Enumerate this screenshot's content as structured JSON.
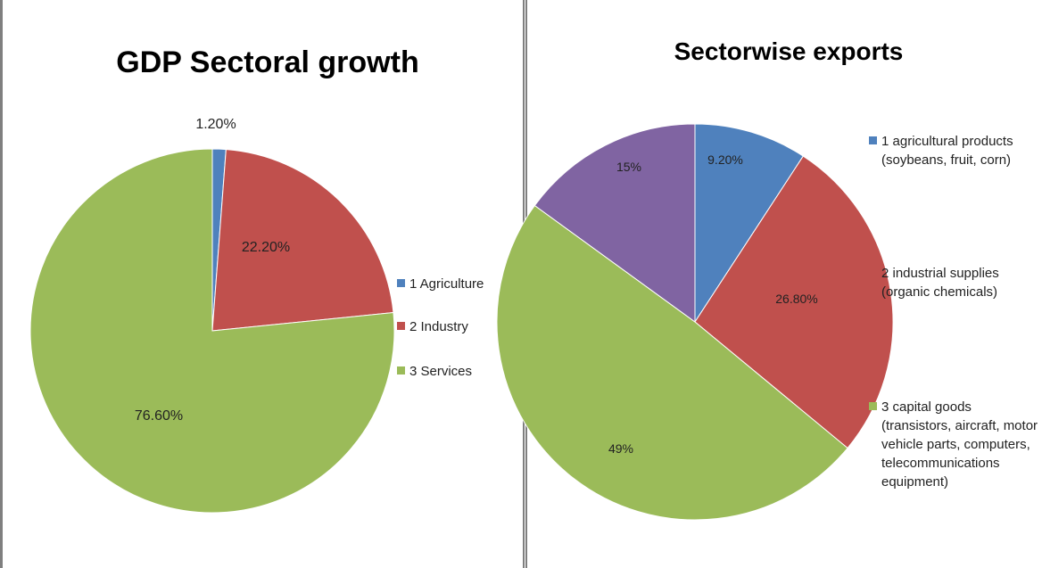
{
  "chart_data": [
    {
      "type": "pie",
      "title": "GDP Sectoral growth",
      "legend_position": "right",
      "slices": [
        {
          "label": "1 Agriculture",
          "value": 1.2,
          "data_label": "1.20%",
          "color": "#4f81bd"
        },
        {
          "label": "2  Industry",
          "value": 22.2,
          "data_label": "22.20%",
          "color": "#c0504d"
        },
        {
          "label": "3 Services",
          "value": 76.6,
          "data_label": "76.60%",
          "color": "#9bbb59"
        }
      ]
    },
    {
      "type": "pie",
      "title": "Sectorwise exports",
      "legend_position": "right",
      "slices": [
        {
          "label": "1 agricultural products (soybeans, fruit, corn)",
          "value": 9.2,
          "data_label": "9.20%",
          "color": "#4f81bd"
        },
        {
          "label": "2  industrial supplies (organic chemicals)",
          "value": 26.8,
          "data_label": "26.80%",
          "color": "#c0504d"
        },
        {
          "label": "3 capital goods (transistors, aircraft, motor vehicle parts, computers, telecommunications equipment)",
          "value": 49,
          "data_label": "49%",
          "color": "#9bbb59"
        },
        {
          "label": "",
          "value": 15,
          "data_label": "15%",
          "color": "#8064a2"
        }
      ]
    }
  ]
}
